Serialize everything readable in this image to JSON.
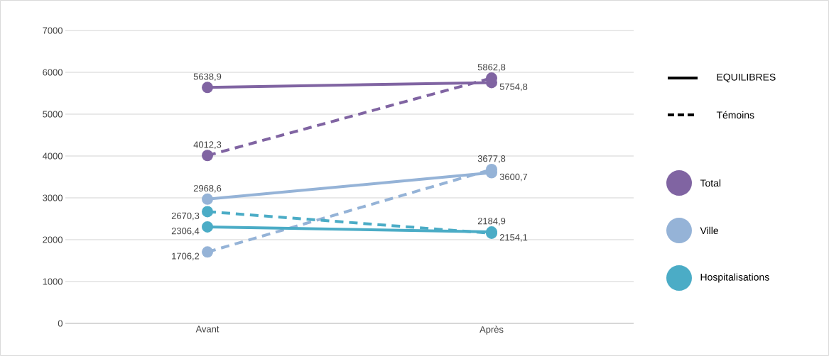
{
  "chart_data": {
    "type": "line",
    "categories": [
      "Avant",
      "Après"
    ],
    "series": [
      {
        "name": "Total",
        "color": "#8064a2",
        "line_style": "solid",
        "values": [
          5638.9,
          5754.8
        ],
        "value_labels": [
          "5638,9",
          "5754,8"
        ]
      },
      {
        "color": "#8064a2",
        "line_style": "dashed",
        "values": [
          4012.3,
          5862.8
        ],
        "value_labels": [
          "4012,3",
          "5862,8"
        ]
      },
      {
        "name": "Ville",
        "color": "#95b3d7",
        "line_style": "solid",
        "values": [
          2968.6,
          3600.7
        ],
        "value_labels": [
          "2968,6",
          "3600,7"
        ]
      },
      {
        "color": "#95b3d7",
        "line_style": "dashed",
        "values": [
          1706.2,
          3677.8
        ],
        "value_labels": [
          "1706,2",
          "3677,8"
        ]
      },
      {
        "name": "Hospitalisations",
        "color": "#4bacc6",
        "line_style": "solid",
        "values": [
          2306.4,
          2184.9
        ],
        "value_labels": [
          "2306,4",
          "2184,9"
        ]
      },
      {
        "color": "#4bacc6",
        "line_style": "dashed",
        "values": [
          2670.3,
          2154.1
        ],
        "value_labels": [
          "2670,3",
          "2154,1"
        ]
      }
    ],
    "ylim": [
      0,
      7000
    ],
    "yticks": [
      0,
      1000,
      2000,
      3000,
      4000,
      5000,
      6000,
      7000
    ],
    "grid": "y",
    "legend": "right",
    "marker": "circle",
    "annotations": [
      "EQUILIBRES",
      "Témoins"
    ]
  }
}
